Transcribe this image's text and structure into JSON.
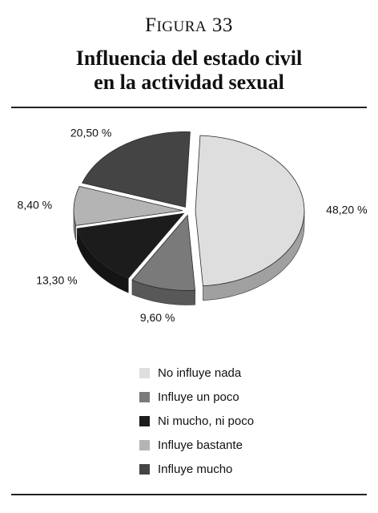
{
  "figure": {
    "cap": "F",
    "rest": "IGURA",
    "number": "33"
  },
  "title_line1": "Influencia del estado civil",
  "title_line2": "en la actividad sexual",
  "chart_data": {
    "type": "pie",
    "title": "Influencia del estado civil en la actividad sexual",
    "style": "3d-exploded",
    "legend_position": "bottom",
    "slices": [
      {
        "label": "No influye nada",
        "value": 48.2,
        "display": "48,20 %",
        "color": "#dedede"
      },
      {
        "label": "Influye un poco",
        "value": 9.6,
        "display": "9,60 %",
        "color": "#7a7a7a"
      },
      {
        "label": "Ni mucho, ni poco",
        "value": 13.3,
        "display": "13,30 %",
        "color": "#1c1c1c"
      },
      {
        "label": "Influye bastante",
        "value": 8.4,
        "display": "8,40 %",
        "color": "#b4b4b4"
      },
      {
        "label": "Influye mucho",
        "value": 20.5,
        "display": "20,50 %",
        "color": "#444444"
      }
    ]
  }
}
